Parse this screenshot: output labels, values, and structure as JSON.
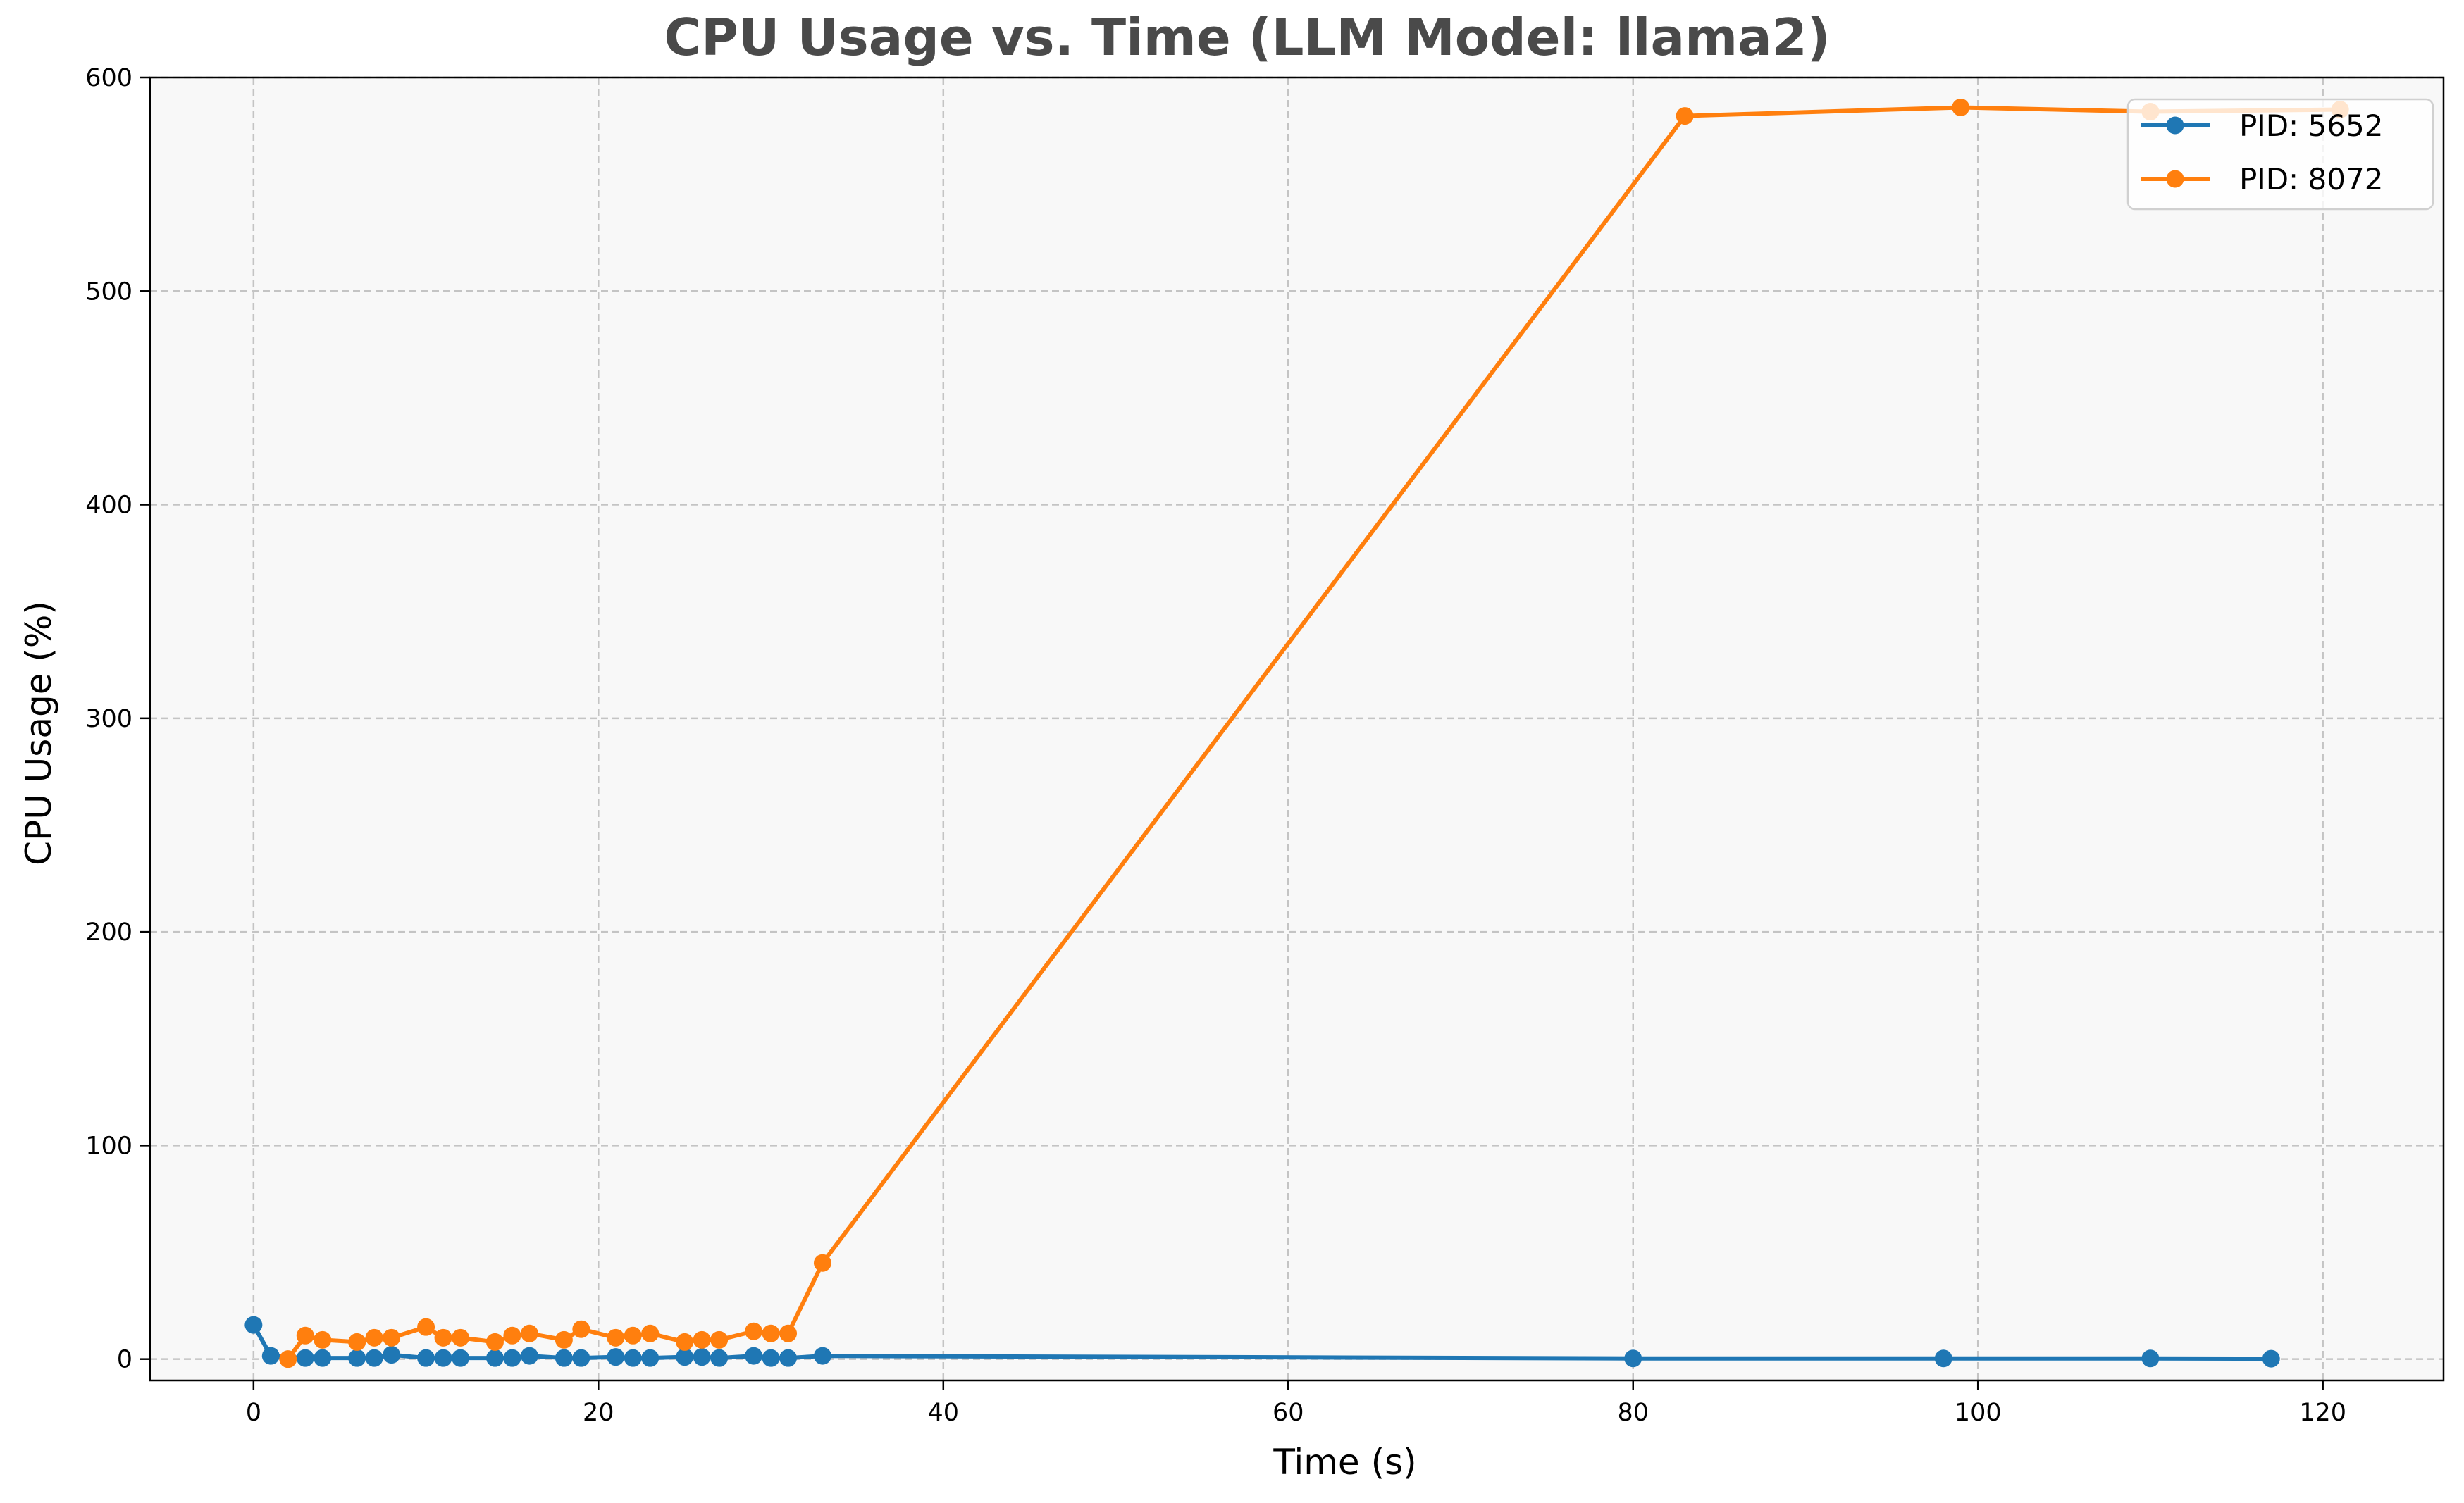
{
  "chart_data": {
    "type": "line",
    "title": "CPU Usage vs. Time (LLM Model: llama2)",
    "xlabel": "Time (s)",
    "ylabel": "CPU Usage (%)",
    "xlim": [
      -6,
      127
    ],
    "ylim": [
      -10,
      600
    ],
    "xticks": [
      0,
      20,
      40,
      60,
      80,
      100,
      120
    ],
    "yticks": [
      0,
      100,
      200,
      300,
      400,
      500,
      600
    ],
    "xtick_labels": [
      "0",
      "20",
      "40",
      "60",
      "80",
      "100",
      "120"
    ],
    "ytick_labels": [
      "0",
      "100",
      "200",
      "300",
      "400",
      "500",
      "600"
    ],
    "grid": true,
    "legend_position": "top-right",
    "series": [
      {
        "name": "PID: 5652",
        "color": "#1f77b4",
        "x": [
          0,
          1,
          3,
          4,
          6,
          7,
          8,
          10,
          11,
          12,
          14,
          15,
          16,
          18,
          19,
          21,
          22,
          23,
          25,
          26,
          27,
          29,
          30,
          31,
          33,
          80,
          98,
          110,
          117
        ],
        "y": [
          16,
          1.5,
          0.5,
          0.5,
          0.5,
          0.5,
          2,
          0.5,
          0.5,
          0.5,
          0.5,
          0.5,
          1.5,
          0.5,
          0.5,
          1,
          0.5,
          0.5,
          1,
          1,
          0.5,
          1.5,
          0.5,
          0.5,
          1.5,
          0.3,
          0.3,
          0.3,
          0.2
        ]
      },
      {
        "name": "PID: 8072",
        "color": "#ff7f0e",
        "x": [
          2,
          3,
          4,
          6,
          7,
          8,
          10,
          11,
          12,
          14,
          15,
          16,
          18,
          19,
          21,
          22,
          23,
          25,
          26,
          27,
          29,
          30,
          31,
          33,
          83,
          99,
          110,
          121
        ],
        "y": [
          0,
          11,
          9,
          8,
          10,
          10,
          15,
          10,
          10,
          8,
          11,
          12,
          9,
          14,
          10,
          11,
          12,
          8,
          9,
          9,
          13,
          12,
          12,
          45,
          582,
          586,
          584,
          585
        ]
      }
    ]
  }
}
